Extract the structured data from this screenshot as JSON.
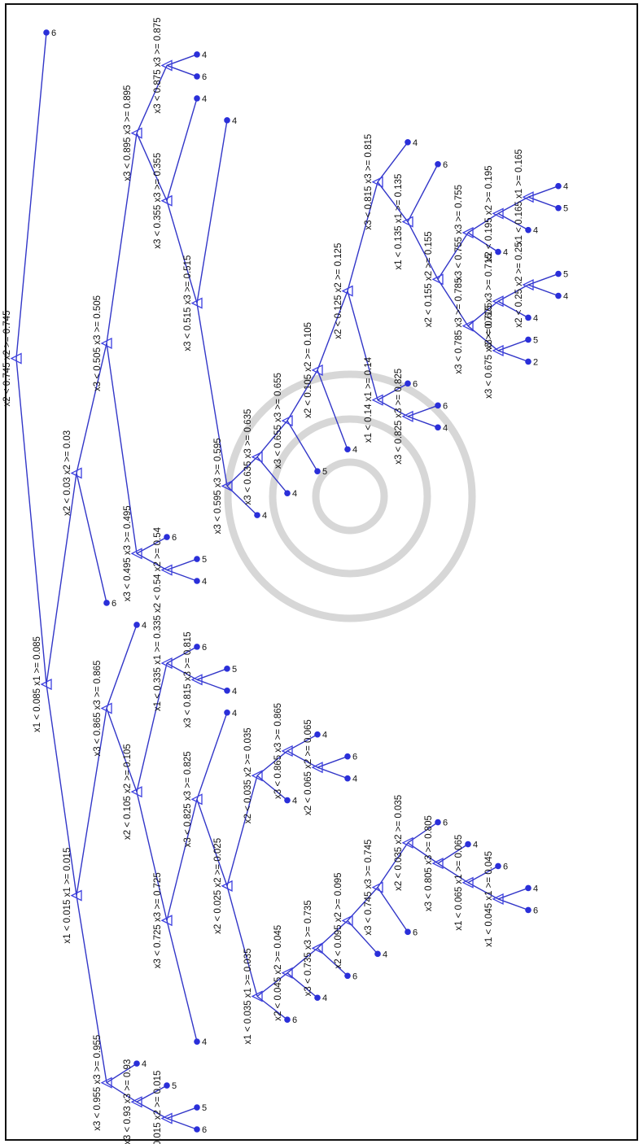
{
  "colors": {
    "edge": "#3236c8",
    "split_marker": "#3c3fe0",
    "leaf_marker": "#2a2fd9",
    "text": "#111111",
    "watermark": "#c9c9c9"
  },
  "icons": {
    "split": "triangle-outline",
    "leaf": "filled-circle"
  },
  "tree": {
    "split": "x2",
    "threshold": "0.745",
    "left": {
      "split": "x1",
      "threshold": "0.085",
      "left": {
        "split": "x1",
        "threshold": "0.015",
        "left": {
          "split": "x3",
          "threshold": "0.955",
          "left": {
            "split": "x3",
            "threshold": "0.93",
            "left": {
              "split": "x2",
              "threshold": "0.015",
              "left": {
                "leaf": "6"
              },
              "right": {
                "leaf": "5"
              }
            },
            "right": {
              "leaf": "5"
            }
          },
          "right": {
            "leaf": "4"
          }
        },
        "right": {
          "split": "x3",
          "threshold": "0.865",
          "left": {
            "split": "x2",
            "threshold": "0.105",
            "left": {
              "split": "x3",
              "threshold": "0.725",
              "left": {
                "leaf": "4"
              },
              "right": {
                "split": "x3",
                "threshold": "0.825",
                "left": {
                  "split": "x2",
                  "threshold": "0.025",
                  "left": {
                    "split": "x1",
                    "threshold": "0.035",
                    "left": {
                      "leaf": "6"
                    },
                    "right": {
                      "split": "x2",
                      "threshold": "0.045",
                      "left": {
                        "leaf": "4"
                      },
                      "right": {
                        "split": "x3",
                        "threshold": "0.735",
                        "left": {
                          "leaf": "6"
                        },
                        "right": {
                          "split": "x2",
                          "threshold": "0.095",
                          "left": {
                            "leaf": "4"
                          },
                          "right": {
                            "split": "x3",
                            "threshold": "0.745",
                            "left": {
                              "leaf": "6"
                            },
                            "right": {
                              "split": "x2",
                              "threshold": "0.035",
                              "left": {
                                "split": "x3",
                                "threshold": "0.805",
                                "left": {
                                  "split": "x1",
                                  "threshold": "0.065",
                                  "left": {
                                    "split": "x1",
                                    "threshold": "0.045",
                                    "left": {
                                      "leaf": "6"
                                    },
                                    "right": {
                                      "leaf": "4"
                                    }
                                  },
                                  "right": {
                                    "leaf": "6"
                                  }
                                },
                                "right": {
                                  "leaf": "4"
                                }
                              },
                              "right": {
                                "leaf": "6"
                              }
                            }
                          }
                        }
                      }
                    }
                  },
                  "right": {
                    "split": "x2",
                    "threshold": "0.035",
                    "left": {
                      "leaf": "4"
                    },
                    "right": {
                      "split": "x3",
                      "threshold": "0.865",
                      "left": {
                        "split": "x2",
                        "threshold": "0.065",
                        "left": {
                          "leaf": "4"
                        },
                        "right": {
                          "leaf": "6"
                        }
                      },
                      "right": {
                        "leaf": "4"
                      }
                    }
                  }
                },
                "right": {
                  "leaf": "4"
                }
              }
            },
            "right": {
              "split": "x1",
              "threshold": "0.335",
              "left": {
                "split": "x3",
                "threshold": "0.815",
                "left": {
                  "leaf": "4"
                },
                "right": {
                  "leaf": "5"
                }
              },
              "right": {
                "leaf": "6"
              }
            }
          },
          "right": {
            "leaf": "4"
          }
        }
      },
      "right": {
        "split": "x2",
        "threshold": "0.03",
        "left": {
          "leaf": "6"
        },
        "right": {
          "split": "x3",
          "threshold": "0.505",
          "left": {
            "split": "x3",
            "threshold": "0.495",
            "left": {
              "split": "x2",
              "threshold": "0.54",
              "left": {
                "leaf": "4"
              },
              "right": {
                "leaf": "5"
              }
            },
            "right": {
              "leaf": "6"
            }
          },
          "right": {
            "split": "x3",
            "threshold": "0.895",
            "left": {
              "split": "x3",
              "threshold": "0.355",
              "left": {
                "split": "x3",
                "threshold": "0.515",
                "left": {
                  "split": "x3",
                  "threshold": "0.595",
                  "left": {
                    "leaf": "4"
                  },
                  "right": {
                    "split": "x3",
                    "threshold": "0.635",
                    "left": {
                      "leaf": "4"
                    },
                    "right": {
                      "split": "x3",
                      "threshold": "0.655",
                      "left": {
                        "leaf": "5"
                      },
                      "right": {
                        "split": "x2",
                        "threshold": "0.105",
                        "left": {
                          "leaf": "4"
                        },
                        "right": {
                          "split": "x2",
                          "threshold": "0.125",
                          "left": {
                            "split": "x1",
                            "threshold": "0.14",
                            "left": {
                              "split": "x3",
                              "threshold": "0.825",
                              "left": {
                                "leaf": "4"
                              },
                              "right": {
                                "leaf": "6"
                              }
                            },
                            "right": {
                              "leaf": "6"
                            }
                          },
                          "right": {
                            "split": "x3",
                            "threshold": "0.815",
                            "left": {
                              "split": "x1",
                              "threshold": "0.135",
                              "left": {
                                "split": "x2",
                                "threshold": "0.155",
                                "left": {
                                  "split": "x3",
                                  "threshold": "0.785",
                                  "left": {
                                    "split": "x3",
                                    "threshold": "0.675",
                                    "left": {
                                      "leaf": "2"
                                    },
                                    "right": {
                                      "leaf": "5"
                                    }
                                  },
                                  "right": {
                                    "split": "x3",
                                    "threshold": "0.715",
                                    "left": {
                                      "leaf": "4"
                                    },
                                    "right": {
                                      "split": "x2",
                                      "threshold": "0.25",
                                      "left": {
                                        "leaf": "4"
                                      },
                                      "right": {
                                        "leaf": "5"
                                      }
                                    }
                                  }
                                },
                                "right": {
                                  "split": "x3",
                                  "threshold": "0.755",
                                  "left": {
                                    "leaf": "4"
                                  },
                                  "right": {
                                    "split": "x2",
                                    "threshold": "0.195",
                                    "left": {
                                      "leaf": "4"
                                    },
                                    "right": {
                                      "split": "x1",
                                      "threshold": "0.165",
                                      "left": {
                                        "leaf": "5"
                                      },
                                      "right": {
                                        "leaf": "4"
                                      }
                                    }
                                  }
                                }
                              },
                              "right": {
                                "leaf": "6"
                              }
                            },
                            "right": {
                              "leaf": "4"
                            }
                          }
                        }
                      }
                    }
                  }
                },
                "right": {
                  "leaf": "4"
                }
              },
              "right": {
                "leaf": "4"
              }
            },
            "right": {
              "split": "x3",
              "threshold": "0.875",
              "left": {
                "leaf": "6"
              },
              "right": {
                "leaf": "4"
              }
            }
          }
        }
      }
    },
    "right": {
      "leaf": "6"
    }
  }
}
